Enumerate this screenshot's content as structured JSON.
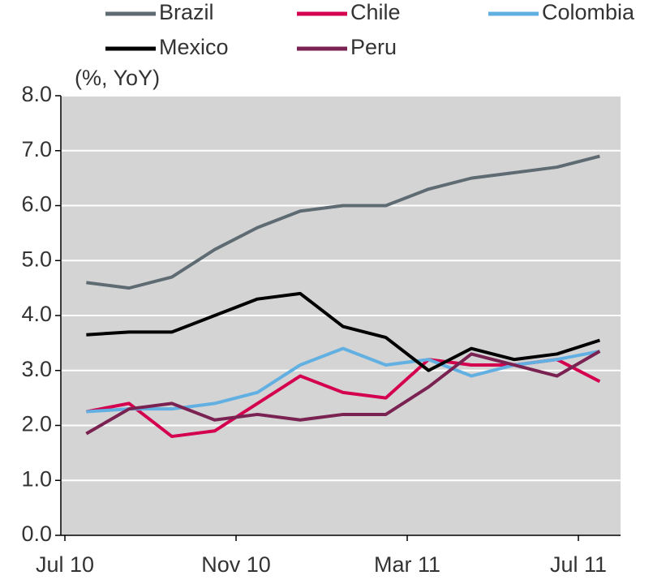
{
  "chart_data": {
    "type": "line",
    "y_label": "(%, YoY)",
    "categories": [
      "Jul 10",
      null,
      null,
      null,
      "Nov 10",
      null,
      null,
      null,
      "Mar 11",
      null,
      null,
      null,
      "Jul 11"
    ],
    "series": [
      {
        "name": "Brazil",
        "color": "#5f6b73",
        "values": [
          4.6,
          4.5,
          4.7,
          5.2,
          5.6,
          5.9,
          6.0,
          6.0,
          6.3,
          6.5,
          6.6,
          6.7,
          6.9
        ]
      },
      {
        "name": "Chile",
        "color": "#d4004f",
        "values": [
          2.25,
          2.4,
          1.8,
          1.9,
          2.4,
          2.9,
          2.6,
          2.5,
          3.2,
          3.1,
          3.1,
          3.2,
          2.8
        ]
      },
      {
        "name": "Colombia",
        "color": "#62b0e2",
        "values": [
          2.25,
          2.3,
          2.3,
          2.4,
          2.6,
          3.1,
          3.4,
          3.1,
          3.2,
          2.9,
          3.1,
          3.2,
          3.35
        ]
      },
      {
        "name": "Mexico",
        "color": "#000000",
        "values": [
          3.65,
          3.7,
          3.7,
          4.0,
          4.3,
          4.4,
          3.8,
          3.6,
          3.0,
          3.4,
          3.2,
          3.3,
          3.55
        ]
      },
      {
        "name": "Peru",
        "color": "#7a2252",
        "values": [
          1.85,
          2.3,
          2.4,
          2.1,
          2.2,
          2.1,
          2.2,
          2.2,
          2.7,
          3.3,
          3.1,
          2.9,
          3.35
        ]
      }
    ],
    "ylim": [
      0,
      8
    ],
    "yticks": [
      {
        "value": 0,
        "label": "0.0"
      },
      {
        "value": 1,
        "label": "1.0"
      },
      {
        "value": 2,
        "label": "2.0"
      },
      {
        "value": 3,
        "label": "3.0"
      },
      {
        "value": 4,
        "label": "4.0"
      },
      {
        "value": 5,
        "label": "5.0"
      },
      {
        "value": 6,
        "label": "6.0"
      },
      {
        "value": 7,
        "label": "7.0"
      },
      {
        "value": 8,
        "label": "8.0"
      }
    ],
    "grid": true
  }
}
